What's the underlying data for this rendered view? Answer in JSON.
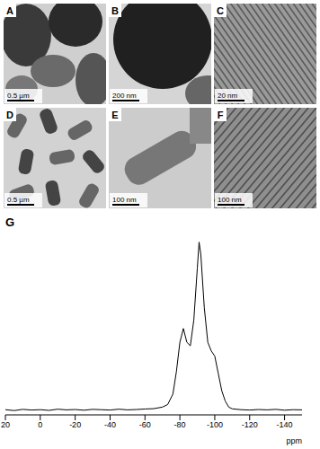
{
  "panels": [
    {
      "label": "A",
      "scale_bar": "0.5 µm"
    },
    {
      "label": "B",
      "scale_bar": "200 nm"
    },
    {
      "label": "C",
      "scale_bar": "20 nm"
    },
    {
      "label": "D",
      "scale_bar": "0.5 µm"
    },
    {
      "label": "E",
      "scale_bar": "100 nm"
    },
    {
      "label": "F",
      "scale_bar": "100 nm"
    }
  ],
  "chart_data": {
    "type": "line",
    "title": "G",
    "xlabel": "ppm",
    "color": "#000000",
    "tick_labels": "x",
    "x": [
      20,
      15,
      10,
      5,
      0,
      -5,
      -10,
      -15,
      -20,
      -25,
      -30,
      -35,
      -40,
      -45,
      -50,
      -55,
      -60,
      -65,
      -70,
      -73,
      -76,
      -78,
      -80,
      -82,
      -84,
      -86,
      -88,
      -90,
      -91,
      -92,
      -94,
      -96,
      -98,
      -100,
      -102,
      -104,
      -106,
      -108,
      -110,
      -115,
      -120,
      -125,
      -130,
      -135,
      -140,
      -145,
      -150
    ],
    "values": [
      3,
      2.5,
      3.2,
      2.8,
      3,
      2.6,
      3.3,
      2.9,
      3.1,
      2.7,
      3.2,
      3,
      2.8,
      3.3,
      2.9,
      3.1,
      3.4,
      3.6,
      4.5,
      6,
      12,
      25,
      42,
      50,
      42,
      40,
      55,
      85,
      100,
      93,
      62,
      42,
      37,
      34,
      24,
      14,
      8,
      4.5,
      3.5,
      3,
      2.8,
      3.1,
      2.9,
      3.2,
      2.7,
      3,
      2.9
    ],
    "xlim": [
      20,
      -150
    ],
    "xticks": [
      20,
      0,
      -20,
      -40,
      -60,
      -80,
      -100,
      -120,
      -140
    ],
    "ylim": [
      0,
      105
    ]
  }
}
